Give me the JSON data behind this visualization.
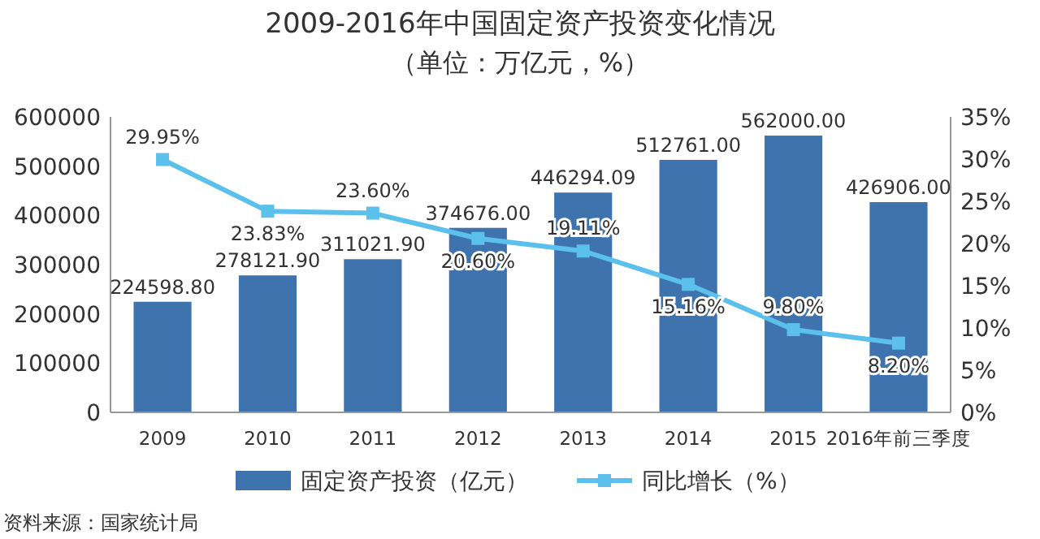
{
  "chart_data": {
    "type": "bar",
    "title": "2009-2016年中国固定资产投资变化情况",
    "subtitle": "（单位：万亿元，%）",
    "categories": [
      "2009",
      "2010",
      "2011",
      "2012",
      "2013",
      "2014",
      "2015",
      "2016年前三季度"
    ],
    "series": [
      {
        "name": "固定资产投资（亿元）",
        "color": "#3f73ad",
        "values": [
          224598.8,
          278121.9,
          311021.9,
          374676.0,
          446294.09,
          512761.0,
          562000.0,
          426906.0
        ],
        "value_labels": [
          "224598.80",
          "278121.90",
          "311021.90",
          "374676.00",
          "446294.09",
          "512761.00",
          "562000.00",
          "426906.00"
        ]
      },
      {
        "name": "同比增长（%）",
        "type": "line",
        "axis": "y2",
        "color": "#5bc0eb",
        "values": [
          29.95,
          23.83,
          23.6,
          20.6,
          19.11,
          15.16,
          9.8,
          8.2
        ],
        "value_labels": [
          "29.95%",
          "23.83%",
          "23.60%",
          "20.60%",
          "19.11%",
          "15.16%",
          "9.80%",
          "8.20%"
        ]
      }
    ],
    "ylim": [
      0,
      600000
    ],
    "yticks": [
      0,
      100000,
      200000,
      300000,
      400000,
      500000,
      600000
    ],
    "y2lim": [
      0,
      35
    ],
    "y2ticks": [
      {
        "value": 0,
        "label": "0%"
      },
      {
        "value": 5,
        "label": "5%"
      },
      {
        "value": 10,
        "label": "10%"
      },
      {
        "value": 15,
        "label": "15%"
      },
      {
        "value": 20,
        "label": "20%"
      },
      {
        "value": 25,
        "label": "25%"
      },
      {
        "value": 30,
        "label": "30%"
      },
      {
        "value": 35,
        "label": "35%"
      }
    ],
    "marker": "square",
    "legend": "bottom",
    "grid": false,
    "annotations": [
      "资料来源：国家统计局"
    ]
  }
}
